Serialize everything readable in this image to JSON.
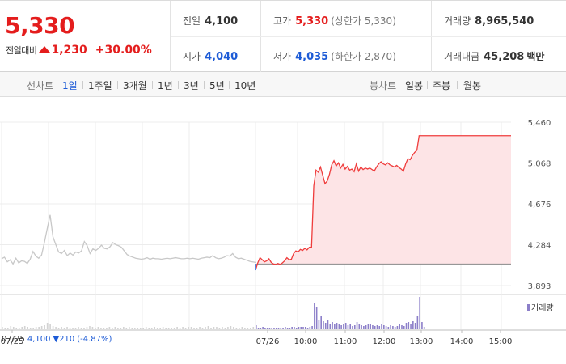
{
  "quote": {
    "price": "5,330",
    "change_label": "전일대비",
    "change_value": "1,230",
    "change_rate": "+30.00%"
  },
  "stats": {
    "prev_close_label": "전일",
    "prev_close": "4,100",
    "open_label": "시가",
    "open": "4,040",
    "high_label": "고가",
    "high": "5,330",
    "upper_limit": "(상한가 5,330)",
    "low_label": "저가",
    "low": "4,035",
    "lower_limit": "(하한가 2,870)",
    "volume_label": "거래량",
    "volume": "8,965,540",
    "amount_label": "거래대금",
    "amount": "45,208",
    "amount_unit": "백만"
  },
  "tabs": {
    "line_chart_label": "선차트",
    "line_periods": [
      "1일",
      "1주일",
      "3개월",
      "1년",
      "3년",
      "5년",
      "10년"
    ],
    "active_period": "1일",
    "candle_chart_label": "봉차트",
    "candle_periods": [
      "일봉",
      "주봉",
      "월봉"
    ]
  },
  "colors": {
    "up": "#e41d1d",
    "down": "#1d5bd6",
    "today_line": "#ef3c3c",
    "today_fill": "#fde4e6",
    "prev_day_line": "#c8c8c8",
    "volume_today": "#8c7fc9",
    "volume_prev": "#d3d3d3"
  },
  "chart_data": {
    "type": "line",
    "y_ticks": [
      "5,460",
      "5,068",
      "4,676",
      "4,284",
      "3,893"
    ],
    "ylim": [
      3893,
      5460
    ],
    "x_ticks": [
      "07/25",
      "07/26",
      "10:00",
      "11:00",
      "12:00",
      "13:00",
      "14:00",
      "15:00"
    ],
    "baseline": 4100,
    "volume_legend": "거래량",
    "prev_day_footer": {
      "date": "07/25",
      "price": "4,100",
      "change": "▼210",
      "rate": "(-4.87%)"
    },
    "series": [
      {
        "day": "07/25",
        "values": [
          4150,
          4165,
          4120,
          4140,
          4100,
          4155,
          4110,
          4130,
          4125,
          4105,
          4145,
          4220,
          4175,
          4155,
          4185,
          4305,
          4440,
          4570,
          4360,
          4285,
          4215,
          4200,
          4230,
          4180,
          4205,
          4185,
          4215,
          4205,
          4225,
          4315,
          4275,
          4200,
          4245,
          4230,
          4250,
          4280,
          4250,
          4245,
          4265,
          4305,
          4285,
          4275,
          4260,
          4225,
          4190,
          4175,
          4165,
          4155,
          4150,
          4145,
          4150,
          4160,
          4145,
          4155,
          4150,
          4150,
          4145,
          4150,
          4155,
          4150,
          4155,
          4160,
          4155,
          4150,
          4150,
          4155,
          4150,
          4155,
          4150,
          4145,
          4155,
          4160,
          4165,
          4160,
          4180,
          4160,
          4150,
          4155,
          4165,
          4180,
          4175,
          4200,
          4165,
          4150,
          4155,
          4145,
          4135,
          4125,
          4120,
          4115
        ]
      },
      {
        "day": "07/26",
        "values": [
          4040,
          4110,
          4160,
          4140,
          4120,
          4130,
          4150,
          4115,
          4100,
          4095,
          4105,
          4095,
          4110,
          4130,
          4160,
          4140,
          4145,
          4200,
          4225,
          4215,
          4240,
          4230,
          4250,
          4235,
          4260,
          4260,
          4850,
          5000,
          4980,
          5030,
          4950,
          4870,
          4895,
          4960,
          5050,
          5090,
          5040,
          5070,
          5020,
          5055,
          5010,
          5035,
          5000,
          5010,
          4985,
          5060,
          4990,
          5030,
          5005,
          5020,
          5010,
          5020,
          5005,
          4990,
          5030,
          5060,
          5080,
          5060,
          5050,
          5070,
          5050,
          5040,
          5030,
          5045,
          5025,
          5010,
          4990,
          5060,
          5110,
          5100,
          5140,
          5170,
          5190,
          5330,
          5330,
          5330,
          5330,
          5330,
          5330,
          5330,
          5330,
          5330,
          5330,
          5330,
          5330,
          5330,
          5330,
          5330,
          5330,
          5330,
          5330,
          5330,
          5330,
          5330,
          5330,
          5330,
          5330,
          5330,
          5330,
          5330,
          5330,
          5330,
          5330,
          5330,
          5330,
          5330,
          5330,
          5330,
          5330,
          5330,
          5330,
          5330,
          5330,
          5330,
          5330
        ]
      }
    ]
  }
}
